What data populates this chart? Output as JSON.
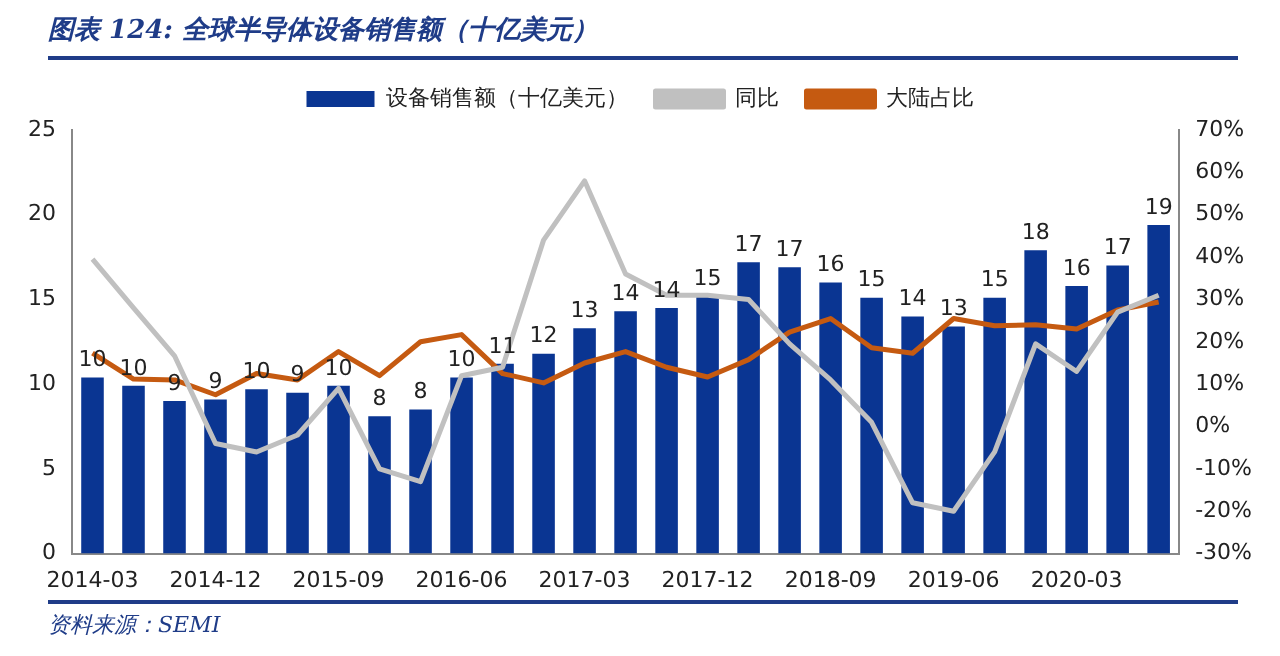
{
  "chart_data": {
    "type": "bar",
    "title": "图表 124:  全球半导体设备销售额（十亿美元）",
    "categories": [
      "2014-03",
      null,
      null,
      "2014-12",
      null,
      null,
      "2015-09",
      null,
      null,
      "2016-06",
      null,
      null,
      "2017-03",
      null,
      null,
      "2017-12",
      null,
      null,
      "2018-09",
      null,
      null,
      "2019-06",
      null,
      null,
      "2020-03",
      null,
      null
    ],
    "series": [
      {
        "name": "设备销售额（十亿美元）",
        "color": "#0a3592",
        "values": [
          10.4,
          9.9,
          9.0,
          9.1,
          9.7,
          9.5,
          9.9,
          8.1,
          8.5,
          10.4,
          11.2,
          11.8,
          13.3,
          14.3,
          14.5,
          15.2,
          17.2,
          16.9,
          16.0,
          15.1,
          14.0,
          13.4,
          15.1,
          17.9,
          15.8,
          17.0,
          19.4
        ],
        "value_labels": [
          "10",
          "10",
          "9",
          "9",
          "10",
          "9",
          "10",
          "8",
          "8",
          "10",
          "11",
          "12",
          "13",
          "14",
          "14",
          "15",
          "17",
          "17",
          "16",
          "15",
          "14",
          "13",
          "15",
          "18",
          "16",
          "17",
          "19"
        ]
      },
      {
        "name": "同比",
        "type": "line",
        "axis": "y2",
        "color": "#c0c0c0",
        "values": [
          39.5,
          28,
          16.7,
          -4,
          -6,
          -2,
          9,
          -10,
          -13,
          12,
          14,
          44,
          58,
          36,
          31,
          31,
          30,
          19.5,
          11,
          1,
          -18,
          -20,
          -6,
          19.5,
          13,
          27,
          31
        ]
      },
      {
        "name": "大陆占比",
        "type": "line",
        "axis": "y2",
        "color": "#c55a11",
        "values": [
          17.3,
          11.2,
          11,
          7.5,
          12.5,
          11,
          17.7,
          12,
          20,
          21.7,
          12.5,
          10.3,
          15,
          17.7,
          14,
          11.7,
          15.8,
          22.3,
          25.5,
          18.6,
          17.3,
          25.5,
          23.8,
          24,
          23,
          27.5,
          29.4
        ]
      }
    ],
    "ylim": [
      0,
      25
    ],
    "yticks": [
      0,
      5,
      10,
      15,
      20,
      25
    ],
    "y2lim": [
      -30,
      70
    ],
    "y2ticks": [
      {
        "value": -30,
        "label": "-30%"
      },
      {
        "value": -20,
        "label": "-20%"
      },
      {
        "value": -10,
        "label": "-10%"
      },
      {
        "value": 0,
        "label": "0%"
      },
      {
        "value": 10,
        "label": "10%"
      },
      {
        "value": 20,
        "label": "20%"
      },
      {
        "value": 30,
        "label": "30%"
      },
      {
        "value": 40,
        "label": "40%"
      },
      {
        "value": 50,
        "label": "50%"
      },
      {
        "value": 60,
        "label": "60%"
      },
      {
        "value": 70,
        "label": "70%"
      }
    ],
    "grid": false,
    "legend": "top",
    "marker": "none",
    "line_style": "solid",
    "annotations": [
      "资料来源：SEMI"
    ]
  }
}
